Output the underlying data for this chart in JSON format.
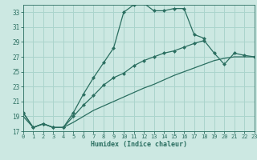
{
  "xlabel": "Humidex (Indice chaleur)",
  "bg_color": "#cce8e2",
  "grid_color": "#aad4cc",
  "line_color": "#2a6e60",
  "xlim": [
    0,
    23
  ],
  "ylim": [
    17,
    34
  ],
  "xticks": [
    0,
    1,
    2,
    3,
    4,
    5,
    6,
    7,
    8,
    9,
    10,
    11,
    12,
    13,
    14,
    15,
    16,
    17,
    18,
    19,
    20,
    21,
    22,
    23
  ],
  "yticks": [
    17,
    19,
    21,
    23,
    25,
    27,
    29,
    31,
    33
  ],
  "line1_x": [
    0,
    1,
    2,
    3,
    4,
    5,
    6,
    7,
    8,
    9,
    10,
    11,
    12,
    13,
    14,
    15,
    16,
    17,
    18
  ],
  "line1_y": [
    19.5,
    17.5,
    18.0,
    17.5,
    17.5,
    19.5,
    22.0,
    24.2,
    26.2,
    28.2,
    33.0,
    34.0,
    34.2,
    33.2,
    33.2,
    33.5,
    33.5,
    30.0,
    29.5
  ],
  "line2_x": [
    0,
    1,
    2,
    3,
    4,
    5,
    6,
    7,
    8,
    9,
    10,
    11,
    12,
    13,
    14,
    15,
    16,
    17,
    18,
    19,
    20,
    21,
    22,
    23
  ],
  "line2_y": [
    19.5,
    17.5,
    18.0,
    17.5,
    17.5,
    19.0,
    20.5,
    21.8,
    23.2,
    24.2,
    24.8,
    25.8,
    26.5,
    27.0,
    27.5,
    27.8,
    28.3,
    28.8,
    29.2,
    27.5,
    26.0,
    27.5,
    27.2,
    27.0
  ],
  "line3_x": [
    0,
    1,
    2,
    3,
    4,
    5,
    6,
    7,
    8,
    9,
    10,
    11,
    12,
    13,
    14,
    15,
    16,
    17,
    18,
    19,
    20,
    21,
    22,
    23
  ],
  "line3_y": [
    19.0,
    17.5,
    18.0,
    17.5,
    17.5,
    18.2,
    19.0,
    19.8,
    20.4,
    21.0,
    21.6,
    22.2,
    22.8,
    23.3,
    23.9,
    24.5,
    25.0,
    25.5,
    26.0,
    26.5,
    26.8,
    27.0,
    27.0,
    27.0
  ]
}
